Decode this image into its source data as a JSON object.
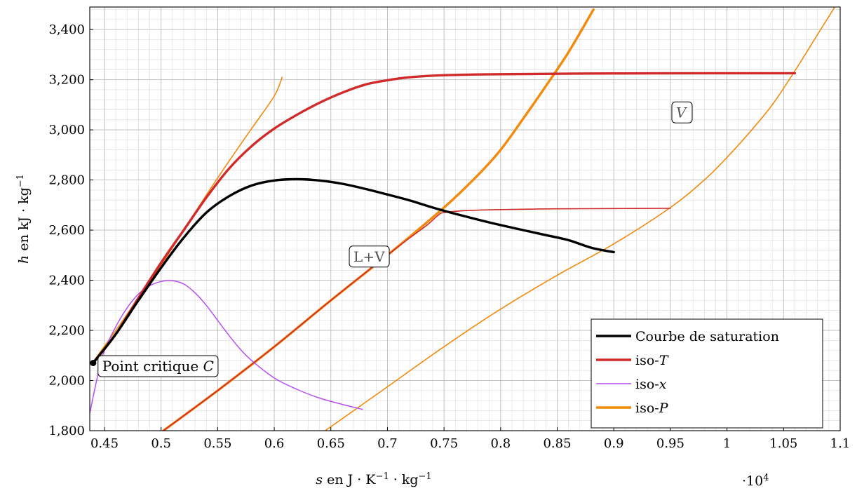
{
  "chart_data": {
    "type": "line",
    "xlabel_parts": [
      "s",
      " en J · K",
      "−1",
      " · kg",
      "−1"
    ],
    "ylabel_parts": [
      "h",
      " en kJ · kg",
      "−1"
    ],
    "x_multiplier": [
      "·10",
      "4"
    ],
    "xlim": [
      0.437,
      1.1
    ],
    "ylim": [
      1800,
      3490
    ],
    "x_ticks": [
      0.45,
      0.5,
      0.55,
      0.6,
      0.65,
      0.7,
      0.75,
      0.8,
      0.85,
      0.9,
      0.95,
      1,
      1.05,
      1.1
    ],
    "x_tick_labels": [
      "0.45",
      "0.5",
      "0.55",
      "0.6",
      "0.65",
      "0.7",
      "0.75",
      "0.8",
      "0.85",
      "0.9",
      "0.95",
      "1",
      "1.05",
      "1.1"
    ],
    "y_ticks": [
      1800,
      2000,
      2200,
      2400,
      2600,
      2800,
      3000,
      3200,
      3400
    ],
    "y_tick_labels": [
      "1,800",
      "2,000",
      "2,200",
      "2,400",
      "2,600",
      "2,800",
      "3,000",
      "3,200",
      "3,400"
    ],
    "grid": true,
    "minor_grid": true,
    "legend_position": "bottom-right",
    "colors": {
      "saturation": "#000000",
      "iso_T": "#d02a2a",
      "iso_x": "#b84ff0",
      "iso_P": "#f28a0c"
    },
    "legend": [
      {
        "key": "saturation",
        "parts": [
          "Courbe de saturation"
        ]
      },
      {
        "key": "iso_T",
        "parts": [
          "iso-",
          "T"
        ]
      },
      {
        "key": "iso_x",
        "parts": [
          "iso-",
          "x"
        ]
      },
      {
        "key": "iso_P",
        "parts": [
          "iso-",
          "P"
        ]
      }
    ],
    "annotations": {
      "vapor": "V",
      "mixture": "L+V",
      "critical_point": [
        "Point critique ",
        "C"
      ]
    },
    "critical_point": {
      "x": 0.44,
      "y": 2070
    },
    "series": [
      {
        "key": "saturation",
        "width": 3.4,
        "points": [
          [
            0.44,
            2070
          ],
          [
            0.46,
            2185
          ],
          [
            0.48,
            2320
          ],
          [
            0.5,
            2450
          ],
          [
            0.52,
            2570
          ],
          [
            0.54,
            2670
          ],
          [
            0.56,
            2735
          ],
          [
            0.58,
            2778
          ],
          [
            0.6,
            2798
          ],
          [
            0.62,
            2803
          ],
          [
            0.64,
            2798
          ],
          [
            0.66,
            2785
          ],
          [
            0.68,
            2765
          ],
          [
            0.7,
            2742
          ],
          [
            0.72,
            2718
          ],
          [
            0.74,
            2690
          ],
          [
            0.76,
            2665
          ],
          [
            0.78,
            2642
          ],
          [
            0.8,
            2620
          ],
          [
            0.82,
            2600
          ],
          [
            0.84,
            2580
          ],
          [
            0.86,
            2560
          ],
          [
            0.88,
            2530
          ],
          [
            0.9,
            2512
          ]
        ]
      },
      {
        "key": "iso_T",
        "width": 3.4,
        "points": [
          [
            0.44,
            2070
          ],
          [
            0.46,
            2185
          ],
          [
            0.48,
            2330
          ],
          [
            0.5,
            2470
          ],
          [
            0.52,
            2600
          ],
          [
            0.54,
            2730
          ],
          [
            0.56,
            2845
          ],
          [
            0.58,
            2935
          ],
          [
            0.6,
            3005
          ],
          [
            0.62,
            3060
          ],
          [
            0.64,
            3108
          ],
          [
            0.66,
            3148
          ],
          [
            0.68,
            3180
          ],
          [
            0.7,
            3198
          ],
          [
            0.72,
            3210
          ],
          [
            0.75,
            3218
          ],
          [
            0.8,
            3222
          ],
          [
            0.9,
            3225
          ],
          [
            1.0,
            3226
          ],
          [
            1.06,
            3226
          ]
        ]
      },
      {
        "key": "iso_T",
        "width": 1.6,
        "points": [
          [
            0.502,
            1800
          ],
          [
            0.55,
            1960
          ],
          [
            0.6,
            2135
          ],
          [
            0.65,
            2320
          ],
          [
            0.7,
            2500
          ],
          [
            0.72,
            2570
          ],
          [
            0.735,
            2620
          ],
          [
            0.745,
            2660
          ],
          [
            0.75,
            2670
          ],
          [
            0.77,
            2678
          ],
          [
            0.8,
            2682
          ],
          [
            0.85,
            2685
          ],
          [
            0.9,
            2686
          ],
          [
            0.95,
            2687
          ]
        ]
      },
      {
        "key": "iso_x",
        "width": 1.5,
        "points": [
          [
            0.437,
            1870
          ],
          [
            0.445,
            2040
          ],
          [
            0.45,
            2120
          ],
          [
            0.46,
            2215
          ],
          [
            0.47,
            2290
          ],
          [
            0.48,
            2345
          ],
          [
            0.49,
            2378
          ],
          [
            0.5,
            2395
          ],
          [
            0.51,
            2398
          ],
          [
            0.52,
            2385
          ],
          [
            0.53,
            2350
          ],
          [
            0.54,
            2300
          ],
          [
            0.55,
            2240
          ],
          [
            0.56,
            2180
          ],
          [
            0.57,
            2125
          ],
          [
            0.58,
            2080
          ],
          [
            0.6,
            2010
          ],
          [
            0.62,
            1965
          ],
          [
            0.64,
            1930
          ],
          [
            0.66,
            1905
          ],
          [
            0.678,
            1885
          ]
        ]
      },
      {
        "key": "iso_P",
        "width": 1.6,
        "points": [
          [
            0.44,
            2075
          ],
          [
            0.46,
            2200
          ],
          [
            0.48,
            2330
          ],
          [
            0.5,
            2460
          ],
          [
            0.52,
            2600
          ],
          [
            0.54,
            2740
          ],
          [
            0.56,
            2875
          ],
          [
            0.58,
            3005
          ],
          [
            0.6,
            3135
          ],
          [
            0.607,
            3210
          ]
        ]
      },
      {
        "key": "iso_P",
        "width": 3.4,
        "points": [
          [
            0.502,
            1800
          ],
          [
            0.55,
            1960
          ],
          [
            0.6,
            2135
          ],
          [
            0.65,
            2320
          ],
          [
            0.7,
            2500
          ],
          [
            0.75,
            2690
          ],
          [
            0.78,
            2820
          ],
          [
            0.8,
            2920
          ],
          [
            0.82,
            3045
          ],
          [
            0.84,
            3175
          ],
          [
            0.86,
            3310
          ],
          [
            0.882,
            3480
          ]
        ]
      },
      {
        "key": "iso_P",
        "width": 1.6,
        "points": [
          [
            0.645,
            1800
          ],
          [
            0.7,
            1975
          ],
          [
            0.75,
            2135
          ],
          [
            0.8,
            2285
          ],
          [
            0.85,
            2420
          ],
          [
            0.9,
            2545
          ],
          [
            0.95,
            2690
          ],
          [
            0.98,
            2800
          ],
          [
            1.0,
            2890
          ],
          [
            1.02,
            2990
          ],
          [
            1.04,
            3100
          ],
          [
            1.06,
            3235
          ],
          [
            1.08,
            3380
          ],
          [
            1.095,
            3488
          ]
        ]
      }
    ]
  }
}
